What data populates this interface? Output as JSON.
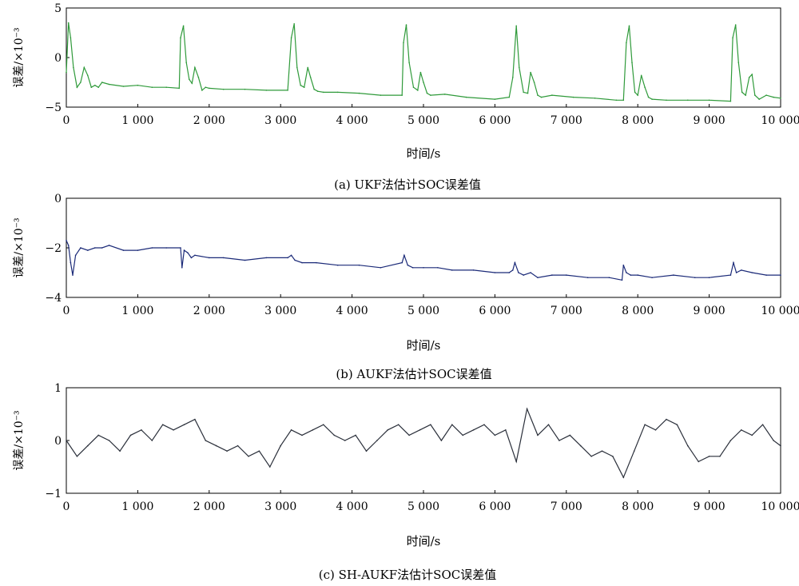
{
  "chart_data": [
    {
      "type": "line",
      "caption": "(a) UKF法估计SOC误差值",
      "xlabel": "时间/s",
      "ylabel": "误差/×10⁻³",
      "xlim": [
        0,
        10000
      ],
      "ylim": [
        -5,
        5
      ],
      "xticks": [
        0,
        1000,
        2000,
        3000,
        4000,
        5000,
        6000,
        7000,
        8000,
        9000,
        10000
      ],
      "xtick_labels": [
        "0",
        "1 000",
        "2 000",
        "3 000",
        "4 000",
        "5 000",
        "6 000",
        "7 000",
        "8 000",
        "9 000",
        "10 000"
      ],
      "yticks": [
        -5,
        0,
        5
      ],
      "ytick_labels": [
        "−5",
        "0",
        "5"
      ],
      "color": "#2f9a3a",
      "series": [
        {
          "x": [
            0,
            30,
            60,
            100,
            150,
            200,
            250,
            300,
            350,
            400,
            450,
            500,
            600,
            800,
            1000,
            1200,
            1400,
            1580,
            1600,
            1640,
            1680,
            1720,
            1760,
            1800,
            1850,
            1900,
            1950,
            2000,
            2200,
            2500,
            2800,
            3100,
            3150,
            3190,
            3230,
            3280,
            3330,
            3380,
            3420,
            3470,
            3520,
            3600,
            3800,
            4100,
            4400,
            4700,
            4720,
            4760,
            4800,
            4860,
            4920,
            4960,
            5000,
            5050,
            5100,
            5300,
            5600,
            6000,
            6200,
            6250,
            6300,
            6340,
            6400,
            6460,
            6500,
            6550,
            6600,
            6650,
            6800,
            7100,
            7400,
            7700,
            7800,
            7840,
            7880,
            7920,
            7960,
            8000,
            8050,
            8100,
            8150,
            8200,
            8400,
            8700,
            9000,
            9300,
            9330,
            9370,
            9410,
            9460,
            9510,
            9560,
            9600,
            9640,
            9700,
            9800,
            9900,
            10000
          ],
          "y": [
            -1.5,
            3.5,
            2.0,
            -1.0,
            -3.0,
            -2.5,
            -1.0,
            -1.8,
            -3.0,
            -2.8,
            -3.0,
            -2.5,
            -2.7,
            -2.9,
            -2.8,
            -3.0,
            -3.0,
            -3.1,
            2.0,
            3.2,
            -0.5,
            -2.2,
            -2.6,
            -1.0,
            -2.0,
            -3.3,
            -3.0,
            -3.1,
            -3.2,
            -3.2,
            -3.3,
            -3.3,
            2.0,
            3.4,
            -1.0,
            -2.8,
            -3.0,
            -1.0,
            -2.0,
            -3.2,
            -3.4,
            -3.5,
            -3.5,
            -3.6,
            -3.8,
            -3.8,
            1.5,
            3.3,
            -0.5,
            -3.0,
            -3.3,
            -1.5,
            -2.5,
            -3.6,
            -3.8,
            -3.7,
            -4.0,
            -4.2,
            -4.0,
            -2.0,
            3.2,
            -1.0,
            -3.5,
            -3.6,
            -1.5,
            -2.5,
            -3.8,
            -4.0,
            -3.8,
            -4.0,
            -4.1,
            -4.3,
            -4.3,
            1.5,
            3.2,
            -0.5,
            -3.5,
            -3.8,
            -1.8,
            -3.0,
            -4.0,
            -4.2,
            -4.3,
            -4.3,
            -4.3,
            -4.4,
            2.0,
            3.3,
            -0.5,
            -3.5,
            -3.8,
            -2.0,
            -1.7,
            -3.8,
            -4.2,
            -3.8,
            -4.0,
            -4.1
          ]
        }
      ]
    },
    {
      "type": "line",
      "caption": "(b) AUKF法估计SOC误差值",
      "xlabel": "时间/s",
      "ylabel": "误差/×10⁻³",
      "xlim": [
        0,
        10000
      ],
      "ylim": [
        -4,
        0
      ],
      "xticks": [
        0,
        1000,
        2000,
        3000,
        4000,
        5000,
        6000,
        7000,
        8000,
        9000,
        10000
      ],
      "xtick_labels": [
        "0",
        "1 000",
        "2 000",
        "3 000",
        "4 000",
        "5 000",
        "6 000",
        "7 000",
        "8 000",
        "9 000",
        "10 000"
      ],
      "yticks": [
        -4,
        -2,
        0
      ],
      "ytick_labels": [
        "−4",
        "−2",
        "0"
      ],
      "color": "#1b2a78",
      "series": [
        {
          "x": [
            0,
            30,
            60,
            90,
            130,
            200,
            300,
            400,
            500,
            600,
            800,
            1000,
            1200,
            1400,
            1600,
            1620,
            1650,
            1700,
            1750,
            1800,
            2000,
            2200,
            2500,
            2800,
            3100,
            3150,
            3200,
            3300,
            3500,
            3800,
            4100,
            4400,
            4700,
            4730,
            4780,
            4850,
            5000,
            5200,
            5400,
            5700,
            6000,
            6200,
            6250,
            6280,
            6330,
            6400,
            6500,
            6600,
            6800,
            7000,
            7300,
            7600,
            7780,
            7800,
            7840,
            7900,
            8000,
            8200,
            8500,
            8800,
            9000,
            9300,
            9340,
            9380,
            9450,
            9600,
            9800,
            10000
          ],
          "y": [
            -1.7,
            -1.9,
            -2.6,
            -3.1,
            -2.3,
            -2.0,
            -2.1,
            -2.0,
            -2.0,
            -1.9,
            -2.1,
            -2.1,
            -2.0,
            -2.0,
            -2.0,
            -2.8,
            -2.1,
            -2.2,
            -2.4,
            -2.3,
            -2.4,
            -2.4,
            -2.5,
            -2.4,
            -2.4,
            -2.3,
            -2.5,
            -2.6,
            -2.6,
            -2.7,
            -2.7,
            -2.8,
            -2.6,
            -2.3,
            -2.7,
            -2.8,
            -2.8,
            -2.8,
            -2.9,
            -2.9,
            -3.0,
            -3.0,
            -2.9,
            -2.6,
            -3.0,
            -3.1,
            -3.0,
            -3.2,
            -3.1,
            -3.1,
            -3.2,
            -3.2,
            -3.3,
            -2.7,
            -3.0,
            -3.1,
            -3.1,
            -3.2,
            -3.1,
            -3.2,
            -3.2,
            -3.1,
            -2.6,
            -3.0,
            -2.9,
            -3.0,
            -3.1,
            -3.1
          ]
        }
      ]
    },
    {
      "type": "line",
      "caption": "(c) SH-AUKF法估计SOC误差值",
      "xlabel": "时间/s",
      "ylabel": "误差/×10⁻³",
      "xlim": [
        0,
        10000
      ],
      "ylim": [
        -1,
        1
      ],
      "xticks": [
        0,
        1000,
        2000,
        3000,
        4000,
        5000,
        6000,
        7000,
        8000,
        9000,
        10000
      ],
      "xtick_labels": [
        "0",
        "1 000",
        "2 000",
        "3 000",
        "4 000",
        "5 000",
        "6 000",
        "7 000",
        "8 000",
        "9 000",
        "10 000"
      ],
      "yticks": [
        -1,
        0,
        1
      ],
      "ytick_labels": [
        "−1",
        "0",
        "1"
      ],
      "color": "#2a2f3a",
      "series": [
        {
          "x": [
            0,
            150,
            300,
            450,
            600,
            750,
            900,
            1050,
            1200,
            1350,
            1500,
            1650,
            1800,
            1950,
            2100,
            2250,
            2400,
            2550,
            2700,
            2850,
            3000,
            3150,
            3300,
            3450,
            3600,
            3750,
            3900,
            4050,
            4200,
            4350,
            4500,
            4650,
            4800,
            4950,
            5100,
            5250,
            5400,
            5550,
            5700,
            5850,
            6000,
            6150,
            6300,
            6450,
            6600,
            6750,
            6900,
            7050,
            7200,
            7350,
            7500,
            7650,
            7800,
            7950,
            8100,
            8250,
            8400,
            8550,
            8700,
            8850,
            9000,
            9150,
            9300,
            9450,
            9600,
            9750,
            9900,
            10000
          ],
          "y": [
            0.0,
            -0.3,
            -0.1,
            0.1,
            0.0,
            -0.2,
            0.1,
            0.2,
            0.0,
            0.3,
            0.2,
            0.3,
            0.4,
            0.0,
            -0.1,
            -0.2,
            -0.1,
            -0.3,
            -0.2,
            -0.5,
            -0.1,
            0.2,
            0.1,
            0.2,
            0.3,
            0.1,
            0.0,
            0.1,
            -0.2,
            0.0,
            0.2,
            0.3,
            0.1,
            0.2,
            0.3,
            0.0,
            0.3,
            0.1,
            0.2,
            0.3,
            0.1,
            0.2,
            -0.4,
            0.6,
            0.1,
            0.3,
            0.0,
            0.1,
            -0.1,
            -0.3,
            -0.2,
            -0.3,
            -0.7,
            -0.2,
            0.3,
            0.2,
            0.4,
            0.3,
            -0.1,
            -0.4,
            -0.3,
            -0.3,
            0.0,
            0.2,
            0.1,
            0.3,
            0.0,
            -0.1
          ]
        }
      ]
    }
  ]
}
